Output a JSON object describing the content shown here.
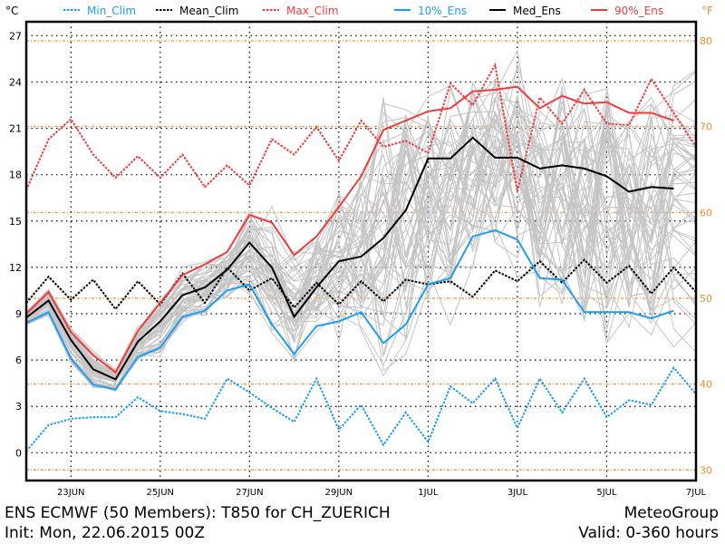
{
  "chart_data": {
    "type": "line",
    "title": "ENS ECMWF (50 Members): T850 for CH_ZUERICH",
    "init_label": "Init: Mon, 22.06.2015 00Z",
    "brand": "MeteoGroup",
    "valid_label": "Valid: 0-360 hours",
    "y_unit_left": "°C",
    "y_unit_right": "°F",
    "ylim": [
      -1.8,
      27.9
    ],
    "xlim_hours": [
      0,
      360
    ],
    "y_ticks": [
      0,
      3,
      6,
      9,
      12,
      15,
      18,
      21,
      24,
      27
    ],
    "y_ticks_f": [
      30,
      40,
      50,
      60,
      70,
      80
    ],
    "x_ticks": [
      {
        "hour": 24,
        "label": "23JUN"
      },
      {
        "hour": 72,
        "label": "25JUN"
      },
      {
        "hour": 120,
        "label": "27JUN"
      },
      {
        "hour": 168,
        "label": "29JUN"
      },
      {
        "hour": 216,
        "label": "1JUL"
      },
      {
        "hour": 264,
        "label": "3JUL"
      },
      {
        "hour": 312,
        "label": "5JUL"
      },
      {
        "hour": 360,
        "label": "7JUL"
      }
    ],
    "grid": true,
    "step_hours": 12,
    "member_count": 50,
    "series": [
      {
        "name": "Min_Clim",
        "color": "#1e9ef0",
        "style": "dotted",
        "values": [
          0.1,
          1.8,
          2.2,
          2.3,
          2.3,
          3.6,
          2.7,
          2.5,
          2.2,
          4.8,
          3.9,
          2.9,
          2.0,
          4.8,
          1.5,
          3.1,
          0.5,
          2.6,
          0.7,
          4.3,
          3.2,
          4.8,
          1.6,
          4.8,
          2.6,
          4.8,
          2.3,
          3.4,
          3.1,
          5.5,
          3.8
        ]
      },
      {
        "name": "Mean_Clim",
        "color": "#000000",
        "style": "dotted",
        "values": [
          9.7,
          11.4,
          9.9,
          11.2,
          9.3,
          11.1,
          9.6,
          11.6,
          9.7,
          12.0,
          10.5,
          11.3,
          9.4,
          11.0,
          9.6,
          11.1,
          9.8,
          11.2,
          10.9,
          11.1,
          10.1,
          11.8,
          11.1,
          12.4,
          11.0,
          12.5,
          11.0,
          12.1,
          10.3,
          12.0,
          10.4
        ]
      },
      {
        "name": "Max_Clim",
        "color": "#f03c3c",
        "style": "dotted",
        "values": [
          17.0,
          20.3,
          21.6,
          19.3,
          17.8,
          19.2,
          17.8,
          19.3,
          17.2,
          18.6,
          17.3,
          20.3,
          19.3,
          21.1,
          18.9,
          21.5,
          19.8,
          20.2,
          19.4,
          23.9,
          22.5,
          25.1,
          16.9,
          23.0,
          21.3,
          23.5,
          21.3,
          21.2,
          24.2,
          22.0,
          19.8
        ]
      },
      {
        "name": "10%_Ens",
        "color": "#1e9ef0",
        "style": "solid",
        "values": [
          8.4,
          9.1,
          6.1,
          4.4,
          4.1,
          6.2,
          6.8,
          8.8,
          9.2,
          10.5,
          10.9,
          8.3,
          6.4,
          8.2,
          8.5,
          9.1,
          7.1,
          8.3,
          10.9,
          11.3,
          14.0,
          14.4,
          13.8,
          11.3,
          11.2,
          9.1,
          9.1,
          9.1,
          8.7,
          9.2
        ]
      },
      {
        "name": "Med_Ens",
        "color": "#000000",
        "style": "solid",
        "values": [
          8.75,
          9.85,
          7.3,
          5.4,
          4.75,
          7.2,
          8.5,
          10.2,
          10.7,
          11.85,
          13.6,
          12.0,
          8.8,
          10.7,
          12.4,
          12.7,
          13.9,
          15.7,
          19.05,
          19.05,
          20.4,
          19.1,
          19.1,
          18.4,
          18.6,
          18.4,
          17.9,
          16.9,
          17.2,
          17.1
        ]
      },
      {
        "name": "90%_Ens",
        "color": "#f03c3c",
        "style": "solid",
        "values": [
          9.0,
          10.4,
          7.8,
          6.3,
          5.2,
          7.9,
          9.7,
          11.5,
          12.2,
          13.0,
          15.4,
          14.9,
          12.8,
          14.0,
          15.9,
          17.9,
          20.9,
          21.5,
          22.1,
          22.3,
          23.4,
          23.5,
          23.7,
          22.3,
          23.1,
          22.6,
          22.7,
          22.0,
          22.0,
          21.5
        ]
      }
    ]
  },
  "colors": {
    "member": "#c4c4c4",
    "fahrenheit_grid": "#f08c28"
  }
}
